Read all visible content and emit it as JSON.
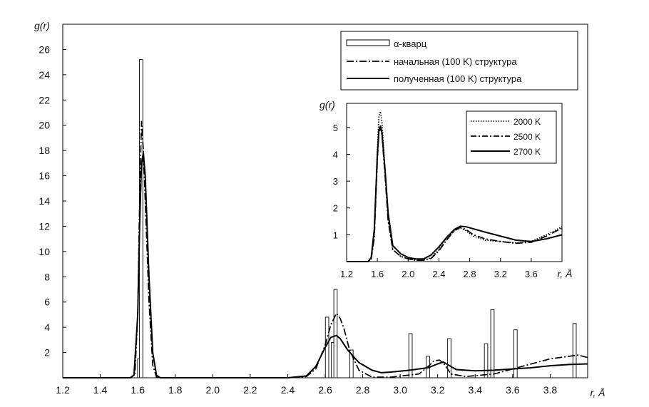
{
  "chart_data": [
    {
      "type": "line",
      "role": "main",
      "xlabel": "r, Å",
      "ylabel": "g(r)",
      "xlim": [
        1.2,
        4.0
      ],
      "ylim": [
        0,
        28
      ],
      "xticks": [
        "1.2",
        "1.4",
        "1.6",
        "1.8",
        "2.0",
        "2.2",
        "2.4",
        "2.6",
        "2.8",
        "3.0",
        "3.2",
        "3.4",
        "3.6",
        "3.8"
      ],
      "yticks": [
        "2",
        "4",
        "6",
        "8",
        "10",
        "12",
        "14",
        "16",
        "18",
        "20",
        "22",
        "24",
        "26"
      ],
      "legend_position": "top-right",
      "bars": {
        "name": "α-кварц",
        "width": 0.018,
        "x": [
          1.608,
          1.618,
          2.61,
          2.642,
          2.655,
          2.74,
          3.055,
          3.148,
          3.262,
          3.458,
          3.492,
          3.615,
          3.93
        ],
        "values": [
          1.5,
          25.2,
          4.8,
          2.8,
          7.0,
          2.2,
          3.5,
          1.7,
          3.1,
          2.7,
          5.4,
          3.8,
          4.3
        ]
      },
      "series": [
        {
          "name": "начальная (100 K) структура",
          "style": "dashdot",
          "x": [
            1.2,
            1.56,
            1.585,
            1.6,
            1.61,
            1.62,
            1.63,
            1.64,
            1.66,
            1.68,
            1.7,
            1.72,
            2.4,
            2.5,
            2.55,
            2.6,
            2.63,
            2.66,
            2.68,
            2.7,
            2.73,
            2.78,
            2.85,
            2.95,
            3.1,
            3.15,
            3.18,
            3.21,
            3.24,
            3.27,
            3.35,
            3.5,
            3.6,
            3.7,
            3.8,
            3.9,
            3.95,
            4.0
          ],
          "values": [
            0.0,
            0.0,
            0.3,
            5.0,
            14.0,
            20.3,
            18.0,
            14.0,
            6.0,
            1.0,
            0.05,
            0.0,
            0.0,
            0.1,
            0.7,
            2.6,
            4.2,
            5.1,
            4.7,
            3.9,
            2.2,
            0.6,
            0.05,
            0.05,
            0.3,
            0.9,
            1.35,
            1.4,
            1.0,
            0.3,
            0.1,
            0.3,
            0.7,
            1.1,
            1.5,
            1.7,
            1.8,
            1.6
          ]
        },
        {
          "name": "полученная (100 K) структура",
          "style": "solid",
          "x": [
            1.2,
            1.56,
            1.58,
            1.6,
            1.61,
            1.62,
            1.63,
            1.64,
            1.66,
            1.68,
            1.7,
            1.72,
            2.4,
            2.5,
            2.55,
            2.6,
            2.63,
            2.66,
            2.68,
            2.72,
            2.78,
            2.85,
            2.9,
            2.95,
            3.05,
            3.15,
            3.2,
            3.23,
            3.27,
            3.3,
            3.4,
            3.5,
            3.6,
            3.7,
            3.8,
            3.9,
            4.0
          ],
          "values": [
            0.0,
            0.0,
            0.2,
            5.0,
            12.0,
            17.0,
            17.8,
            16.0,
            8.0,
            2.0,
            0.2,
            0.0,
            0.0,
            0.15,
            0.9,
            2.4,
            3.2,
            3.35,
            3.1,
            2.2,
            1.2,
            0.6,
            0.4,
            0.45,
            0.6,
            0.8,
            1.1,
            1.25,
            0.9,
            0.65,
            0.55,
            0.6,
            0.7,
            0.8,
            0.95,
            1.05,
            1.1
          ]
        }
      ]
    },
    {
      "type": "line",
      "role": "inset",
      "xlabel": "r, Å",
      "ylabel": "g(r)",
      "xlim": [
        1.2,
        4.0
      ],
      "ylim": [
        0,
        5.9
      ],
      "xticks": [
        "1.2",
        "1.6",
        "2.0",
        "2.4",
        "2.8",
        "3.2",
        "3.6"
      ],
      "yticks": [
        "1",
        "2",
        "3",
        "4",
        "5"
      ],
      "legend_position": "top-right",
      "series": [
        {
          "name": "2000 K",
          "style": "dotted",
          "x": [
            1.2,
            1.48,
            1.52,
            1.56,
            1.6,
            1.62,
            1.64,
            1.66,
            1.7,
            1.74,
            1.8,
            1.9,
            2.0,
            2.1,
            2.2,
            2.3,
            2.4,
            2.5,
            2.6,
            2.68,
            2.75,
            2.85,
            3.0,
            3.2,
            3.4,
            3.6,
            3.8,
            4.0
          ],
          "values": [
            0.0,
            0.0,
            0.1,
            1.0,
            4.2,
            5.4,
            5.6,
            5.2,
            3.4,
            1.6,
            0.45,
            0.2,
            0.1,
            0.05,
            0.05,
            0.15,
            0.45,
            0.85,
            1.15,
            1.25,
            1.15,
            0.95,
            0.8,
            0.75,
            0.7,
            0.75,
            1.0,
            1.3
          ]
        },
        {
          "name": "2500 K",
          "style": "dashdot",
          "x": [
            1.2,
            1.48,
            1.52,
            1.56,
            1.6,
            1.62,
            1.64,
            1.66,
            1.7,
            1.74,
            1.8,
            1.9,
            2.0,
            2.1,
            2.2,
            2.3,
            2.4,
            2.5,
            2.6,
            2.68,
            2.75,
            2.85,
            3.0,
            3.2,
            3.4,
            3.6,
            3.8,
            4.0
          ],
          "values": [
            0.0,
            0.0,
            0.1,
            0.9,
            3.8,
            4.8,
            5.0,
            4.7,
            3.2,
            1.5,
            0.45,
            0.2,
            0.1,
            0.05,
            0.05,
            0.12,
            0.4,
            0.8,
            1.15,
            1.28,
            1.2,
            1.0,
            0.85,
            0.75,
            0.68,
            0.72,
            0.95,
            1.25
          ]
        },
        {
          "name": "2700 K",
          "style": "solid",
          "x": [
            1.2,
            1.48,
            1.52,
            1.56,
            1.6,
            1.62,
            1.64,
            1.66,
            1.7,
            1.74,
            1.8,
            1.9,
            2.0,
            2.1,
            2.2,
            2.3,
            2.4,
            2.5,
            2.6,
            2.68,
            2.75,
            2.85,
            3.0,
            3.2,
            3.4,
            3.6,
            3.8,
            4.0
          ],
          "values": [
            0.0,
            0.0,
            0.15,
            1.2,
            4.0,
            4.9,
            5.05,
            4.8,
            3.4,
            1.8,
            0.6,
            0.3,
            0.15,
            0.1,
            0.1,
            0.25,
            0.55,
            0.9,
            1.2,
            1.32,
            1.3,
            1.22,
            1.1,
            0.95,
            0.8,
            0.75,
            0.85,
            1.0
          ]
        }
      ]
    }
  ]
}
